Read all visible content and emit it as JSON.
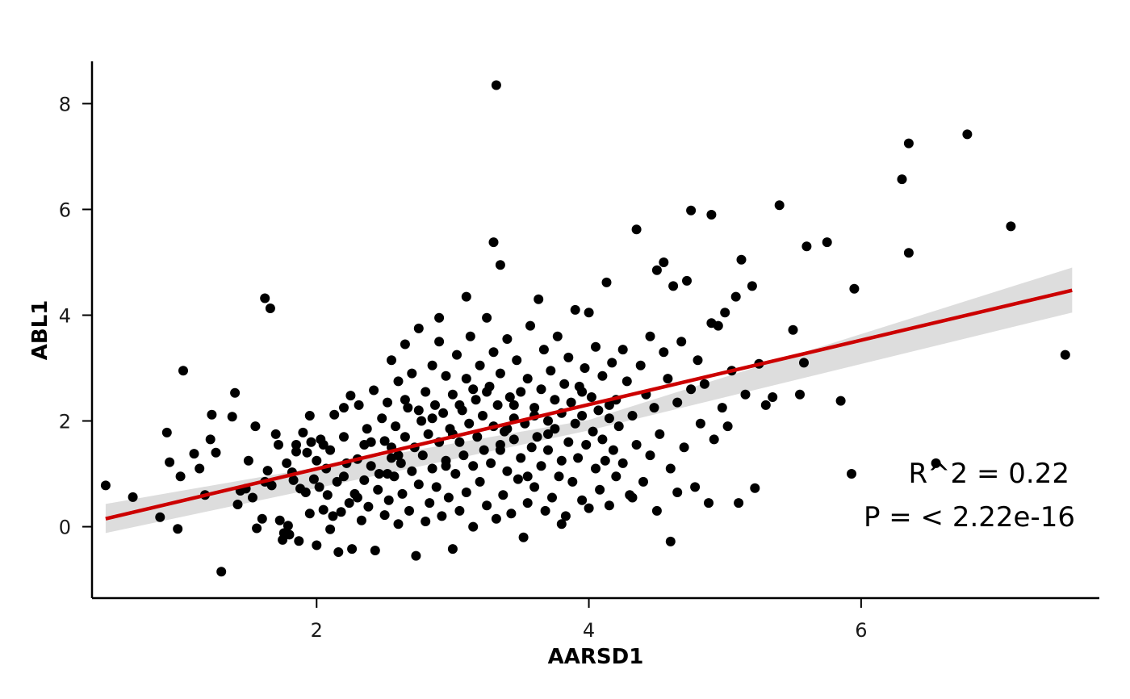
{
  "chart_data": {
    "type": "scatter",
    "title": "",
    "xlabel": "AARSD1",
    "ylabel": "ABL1",
    "xlim": [
      0.35,
      7.75
    ],
    "ylim": [
      -1.35,
      8.8
    ],
    "x_ticks": [
      2,
      4,
      6
    ],
    "y_ticks": [
      0,
      2,
      4,
      6,
      8
    ],
    "grid": false,
    "legend": "bottom-right",
    "annotations": {
      "r2": "R^2 = 0.22",
      "p": "P = < 2.22e-16"
    },
    "colors": {
      "points": "#000000",
      "fit_line": "#cc0000",
      "ci_band": "#d9d9d9"
    },
    "fit": {
      "x_start": 0.45,
      "y_start": 0.15,
      "x_end": 7.55,
      "y_end": 4.47,
      "ci_start": [
        -0.12,
        0.43
      ],
      "ci_mid": [
        1.82,
        2.02
      ],
      "ci_end": [
        4.05,
        4.9
      ]
    },
    "points": [
      [
        0.45,
        0.78
      ],
      [
        0.65,
        0.56
      ],
      [
        0.85,
        0.18
      ],
      [
        0.9,
        1.78
      ],
      [
        0.92,
        1.22
      ],
      [
        0.98,
        -0.04
      ],
      [
        1.0,
        0.95
      ],
      [
        1.02,
        2.95
      ],
      [
        1.1,
        1.38
      ],
      [
        1.14,
        1.1
      ],
      [
        1.18,
        0.6
      ],
      [
        1.22,
        1.65
      ],
      [
        1.23,
        2.12
      ],
      [
        1.26,
        1.4
      ],
      [
        1.3,
        -0.85
      ],
      [
        1.38,
        2.08
      ],
      [
        1.4,
        2.53
      ],
      [
        1.42,
        0.42
      ],
      [
        1.44,
        0.68
      ],
      [
        1.48,
        0.72
      ],
      [
        1.5,
        1.25
      ],
      [
        1.53,
        0.55
      ],
      [
        1.55,
        1.9
      ],
      [
        1.56,
        -0.03
      ],
      [
        1.6,
        0.15
      ],
      [
        1.62,
        0.85
      ],
      [
        1.64,
        1.06
      ],
      [
        1.67,
        0.78
      ],
      [
        1.7,
        1.75
      ],
      [
        1.72,
        1.55
      ],
      [
        1.73,
        0.12
      ],
      [
        1.75,
        -0.25
      ],
      [
        1.62,
        4.32
      ],
      [
        1.66,
        4.13
      ],
      [
        1.76,
        -0.12
      ],
      [
        1.78,
        1.2
      ],
      [
        1.79,
        0.02
      ],
      [
        1.8,
        -0.15
      ],
      [
        1.82,
        1.03
      ],
      [
        1.83,
        0.88
      ],
      [
        1.85,
        1.42
      ],
      [
        1.87,
        -0.27
      ],
      [
        1.88,
        0.72
      ],
      [
        1.9,
        1.78
      ],
      [
        1.92,
        0.65
      ],
      [
        1.93,
        1.4
      ],
      [
        1.95,
        2.1
      ],
      [
        1.96,
        1.6
      ],
      [
        1.98,
        0.9
      ],
      [
        2.0,
        -0.35
      ],
      [
        2.0,
        1.25
      ],
      [
        2.02,
        0.75
      ],
      [
        2.03,
        1.65
      ],
      [
        2.05,
        0.32
      ],
      [
        2.07,
        1.1
      ],
      [
        2.08,
        0.6
      ],
      [
        2.1,
        1.45
      ],
      [
        2.1,
        -0.05
      ],
      [
        2.12,
        0.2
      ],
      [
        2.13,
        2.12
      ],
      [
        2.15,
        0.85
      ],
      [
        2.16,
        -0.48
      ],
      [
        2.18,
        0.28
      ],
      [
        2.2,
        1.7
      ],
      [
        2.2,
        0.95
      ],
      [
        2.22,
        1.2
      ],
      [
        2.24,
        0.45
      ],
      [
        2.25,
        2.48
      ],
      [
        2.26,
        -0.42
      ],
      [
        2.28,
        0.62
      ],
      [
        2.3,
        1.28
      ],
      [
        2.31,
        2.3
      ],
      [
        2.33,
        0.12
      ],
      [
        2.35,
        1.55
      ],
      [
        2.35,
        0.88
      ],
      [
        2.37,
        1.85
      ],
      [
        2.38,
        0.38
      ],
      [
        2.4,
        1.15
      ],
      [
        2.42,
        2.58
      ],
      [
        2.43,
        -0.45
      ],
      [
        2.45,
        0.7
      ],
      [
        2.46,
        1.0
      ],
      [
        2.48,
        2.05
      ],
      [
        2.5,
        0.22
      ],
      [
        2.5,
        1.62
      ],
      [
        2.52,
        2.35
      ],
      [
        2.53,
        0.5
      ],
      [
        2.55,
        1.3
      ],
      [
        2.55,
        3.15
      ],
      [
        2.57,
        0.95
      ],
      [
        2.58,
        1.9
      ],
      [
        2.6,
        0.05
      ],
      [
        2.6,
        2.75
      ],
      [
        2.62,
        1.2
      ],
      [
        2.63,
        0.62
      ],
      [
        2.65,
        3.45
      ],
      [
        2.65,
        1.7
      ],
      [
        2.67,
        2.25
      ],
      [
        2.68,
        0.3
      ],
      [
        2.7,
        1.05
      ],
      [
        2.7,
        2.9
      ],
      [
        2.72,
        1.5
      ],
      [
        2.73,
        -0.55
      ],
      [
        2.75,
        3.75
      ],
      [
        2.75,
        0.8
      ],
      [
        2.77,
        2.0
      ],
      [
        2.78,
        1.35
      ],
      [
        2.8,
        0.1
      ],
      [
        2.8,
        2.55
      ],
      [
        2.82,
        1.75
      ],
      [
        2.83,
        0.45
      ],
      [
        2.85,
        3.05
      ],
      [
        2.85,
        1.1
      ],
      [
        2.87,
        2.3
      ],
      [
        2.88,
        0.75
      ],
      [
        2.9,
        1.6
      ],
      [
        2.9,
        3.5
      ],
      [
        2.92,
        0.2
      ],
      [
        2.93,
        2.15
      ],
      [
        2.95,
        1.25
      ],
      [
        2.95,
        2.85
      ],
      [
        2.97,
        0.55
      ],
      [
        2.98,
        1.85
      ],
      [
        3.0,
        -0.42
      ],
      [
        3.0,
        2.5
      ],
      [
        3.02,
        1.0
      ],
      [
        3.03,
        3.25
      ],
      [
        3.05,
        1.6
      ],
      [
        3.05,
        0.3
      ],
      [
        3.07,
        2.2
      ],
      [
        3.08,
        1.35
      ],
      [
        3.1,
        2.8
      ],
      [
        3.1,
        0.65
      ],
      [
        3.12,
        1.95
      ],
      [
        3.13,
        3.6
      ],
      [
        3.15,
        1.15
      ],
      [
        3.15,
        0.0
      ],
      [
        3.17,
        2.4
      ],
      [
        3.18,
        1.7
      ],
      [
        3.2,
        3.05
      ],
      [
        3.2,
        0.85
      ],
      [
        3.22,
        2.1
      ],
      [
        3.23,
        1.45
      ],
      [
        3.25,
        3.95
      ],
      [
        3.25,
        0.4
      ],
      [
        3.27,
        2.65
      ],
      [
        3.28,
        1.2
      ],
      [
        3.3,
        1.9
      ],
      [
        3.3,
        3.3
      ],
      [
        3.32,
        0.15
      ],
      [
        3.33,
        2.3
      ],
      [
        3.35,
        1.55
      ],
      [
        3.35,
        2.9
      ],
      [
        3.37,
        0.6
      ],
      [
        3.38,
        1.8
      ],
      [
        3.4,
        3.55
      ],
      [
        3.4,
        1.05
      ],
      [
        3.42,
        2.45
      ],
      [
        3.43,
        0.25
      ],
      [
        3.45,
        1.65
      ],
      [
        3.45,
        2.05
      ],
      [
        3.47,
        3.15
      ],
      [
        3.48,
        0.9
      ],
      [
        3.5,
        2.55
      ],
      [
        3.5,
        1.3
      ],
      [
        3.52,
        -0.2
      ],
      [
        3.53,
        1.95
      ],
      [
        3.55,
        2.8
      ],
      [
        3.55,
        0.45
      ],
      [
        3.57,
        3.8
      ],
      [
        3.58,
        1.5
      ],
      [
        3.6,
        2.25
      ],
      [
        3.6,
        0.75
      ],
      [
        3.62,
        1.7
      ],
      [
        3.63,
        4.3
      ],
      [
        3.65,
        2.6
      ],
      [
        3.65,
        1.15
      ],
      [
        3.67,
        3.35
      ],
      [
        3.68,
        0.3
      ],
      [
        3.7,
        2.0
      ],
      [
        3.7,
        1.45
      ],
      [
        3.72,
        2.95
      ],
      [
        3.73,
        0.55
      ],
      [
        3.75,
        2.4
      ],
      [
        3.75,
        1.85
      ],
      [
        3.77,
        3.6
      ],
      [
        3.78,
        0.95
      ],
      [
        3.8,
        2.15
      ],
      [
        3.8,
        1.25
      ],
      [
        3.82,
        2.7
      ],
      [
        3.83,
        0.2
      ],
      [
        3.85,
        1.6
      ],
      [
        3.85,
        3.2
      ],
      [
        3.87,
        2.35
      ],
      [
        3.88,
        0.85
      ],
      [
        3.9,
        1.95
      ],
      [
        3.9,
        4.1
      ],
      [
        3.92,
        1.3
      ],
      [
        3.93,
        2.65
      ],
      [
        3.95,
        0.5
      ],
      [
        3.95,
        2.1
      ],
      [
        3.97,
        3.0
      ],
      [
        3.98,
        1.55
      ],
      [
        4.0,
        4.05
      ],
      [
        4.0,
        0.35
      ],
      [
        4.02,
        2.45
      ],
      [
        4.03,
        1.8
      ],
      [
        4.05,
        3.4
      ],
      [
        4.05,
        1.1
      ],
      [
        4.07,
        2.2
      ],
      [
        4.08,
        0.7
      ],
      [
        4.1,
        1.65
      ],
      [
        4.1,
        2.85
      ],
      [
        4.12,
        1.25
      ],
      [
        4.13,
        4.62
      ],
      [
        4.15,
        2.05
      ],
      [
        4.15,
        0.4
      ],
      [
        4.17,
        3.1
      ],
      [
        4.18,
        1.45
      ],
      [
        4.2,
        2.4
      ],
      [
        4.2,
        0.95
      ],
      [
        4.22,
        1.9
      ],
      [
        4.25,
        3.35
      ],
      [
        4.25,
        1.2
      ],
      [
        4.28,
        2.75
      ],
      [
        4.3,
        0.6
      ],
      [
        4.32,
        2.1
      ],
      [
        4.35,
        1.55
      ],
      [
        4.35,
        5.62
      ],
      [
        4.38,
        3.05
      ],
      [
        4.4,
        0.85
      ],
      [
        4.42,
        2.5
      ],
      [
        4.45,
        1.35
      ],
      [
        4.45,
        3.6
      ],
      [
        4.48,
        2.25
      ],
      [
        4.5,
        0.3
      ],
      [
        4.5,
        4.85
      ],
      [
        4.52,
        1.75
      ],
      [
        4.55,
        3.3
      ],
      [
        4.55,
        5.0
      ],
      [
        4.58,
        2.8
      ],
      [
        4.6,
        1.1
      ],
      [
        4.62,
        4.55
      ],
      [
        4.65,
        2.35
      ],
      [
        4.65,
        0.65
      ],
      [
        4.68,
        3.5
      ],
      [
        4.7,
        1.5
      ],
      [
        4.72,
        4.65
      ],
      [
        4.75,
        2.6
      ],
      [
        4.75,
        5.98
      ],
      [
        4.78,
        0.75
      ],
      [
        4.8,
        3.15
      ],
      [
        4.82,
        1.95
      ],
      [
        4.85,
        2.7
      ],
      [
        4.88,
        0.45
      ],
      [
        4.9,
        5.9
      ],
      [
        4.92,
        1.65
      ],
      [
        4.95,
        3.8
      ],
      [
        4.98,
        2.25
      ],
      [
        5.0,
        4.05
      ],
      [
        5.02,
        1.9
      ],
      [
        5.05,
        2.95
      ],
      [
        5.08,
        4.35
      ],
      [
        5.1,
        0.45
      ],
      [
        5.12,
        5.05
      ],
      [
        5.15,
        2.5
      ],
      [
        5.2,
        4.55
      ],
      [
        5.22,
        0.73
      ],
      [
        5.25,
        3.08
      ],
      [
        5.3,
        2.3
      ],
      [
        4.9,
        3.85
      ],
      [
        4.6,
        -0.28
      ],
      [
        5.35,
        2.45
      ],
      [
        5.4,
        6.08
      ],
      [
        5.5,
        3.72
      ],
      [
        5.55,
        2.5
      ],
      [
        5.58,
        3.1
      ],
      [
        5.6,
        5.3
      ],
      [
        5.75,
        5.38
      ],
      [
        5.85,
        2.38
      ],
      [
        5.95,
        4.5
      ],
      [
        6.3,
        6.57
      ],
      [
        6.35,
        7.25
      ],
      [
        6.35,
        5.18
      ],
      [
        6.55,
        1.2
      ],
      [
        6.78,
        7.42
      ],
      [
        7.1,
        5.68
      ],
      [
        7.5,
        3.25
      ],
      [
        3.32,
        8.35
      ],
      [
        3.3,
        5.38
      ],
      [
        3.35,
        4.95
      ],
      [
        3.1,
        4.35
      ],
      [
        2.9,
        3.95
      ],
      [
        3.45,
        2.3
      ],
      [
        2.52,
        1.0
      ],
      [
        2.2,
        2.25
      ],
      [
        1.95,
        0.25
      ],
      [
        2.3,
        0.55
      ],
      [
        3.55,
        0.95
      ],
      [
        3.8,
        0.05
      ],
      [
        4.32,
        0.55
      ],
      [
        2.65,
        2.4
      ],
      [
        3.15,
        2.6
      ],
      [
        3.25,
        2.55
      ],
      [
        2.85,
        2.05
      ],
      [
        3.95,
        2.55
      ],
      [
        4.15,
        2.3
      ],
      [
        2.75,
        2.2
      ],
      [
        3.05,
        2.3
      ],
      [
        3.6,
        2.1
      ],
      [
        2.4,
        1.6
      ],
      [
        2.55,
        1.5
      ],
      [
        3.4,
        1.85
      ],
      [
        3.7,
        1.75
      ],
      [
        1.85,
        1.55
      ],
      [
        2.05,
        1.55
      ],
      [
        3.35,
        1.45
      ],
      [
        3.0,
        1.75
      ],
      [
        2.6,
        1.35
      ],
      [
        2.95,
        1.15
      ]
    ]
  }
}
